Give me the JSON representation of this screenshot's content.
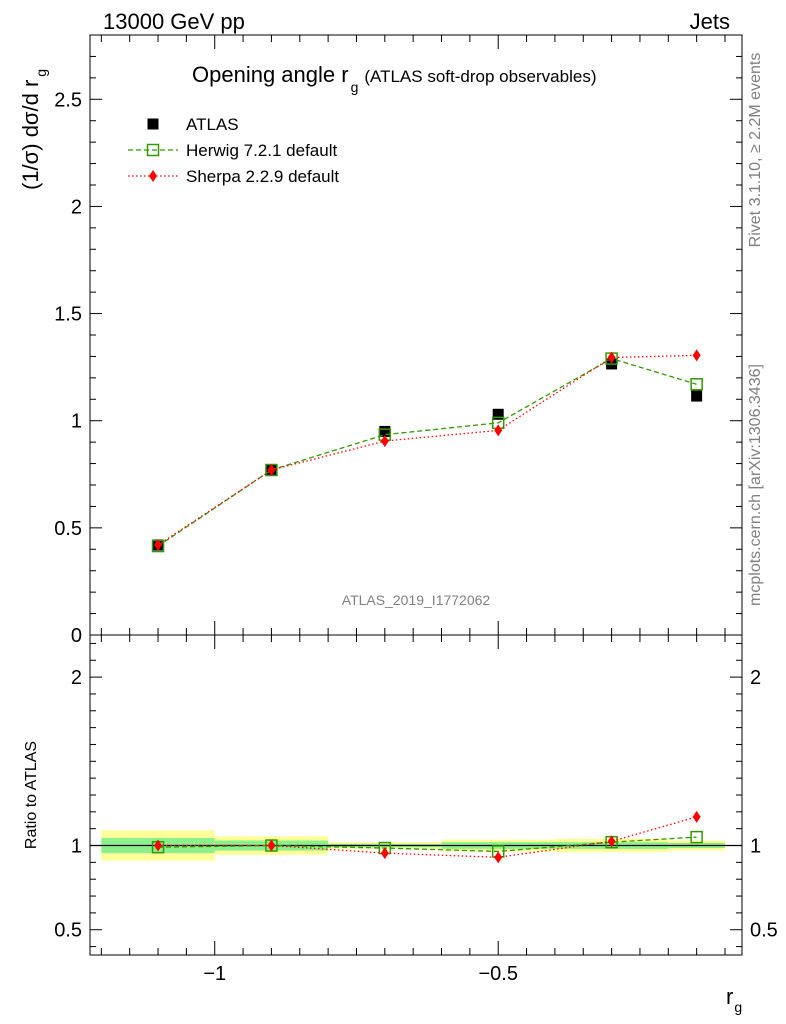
{
  "header": {
    "left": "13000 GeV pp",
    "right": "Jets"
  },
  "side_labels": {
    "rivet": "Rivet 3.1.10, ≥ 2.2M events",
    "mcplots": "mcplots.cern.ch [arXiv:1306.3436]"
  },
  "chart_data": [
    {
      "type": "scatter",
      "panel": "main",
      "title_main": "Opening angle r",
      "title_sub": "g",
      "title_paren": "(ATLAS soft-drop observables)",
      "watermark": "ATLAS_2019_I1772062",
      "ylabel_main": "(1/σ) dσ/d r",
      "ylabel_sub": "g",
      "ylim": [
        0,
        2.8
      ],
      "xlim": [
        -1.22,
        -0.07
      ],
      "y_ticks": [
        "0",
        "0.5",
        "1",
        "1.5",
        "2",
        "2.5"
      ],
      "y_tick_values": [
        0,
        0.5,
        1,
        1.5,
        2,
        2.5
      ],
      "legend_position": "top-left",
      "x": [
        -1.1,
        -0.9,
        -0.7,
        -0.5,
        -0.3,
        -0.15
      ],
      "series": [
        {
          "name": "ATLAS",
          "marker": "filled-square",
          "color": "#000000",
          "values": [
            0.42,
            0.77,
            0.95,
            1.03,
            1.265,
            1.115
          ]
        },
        {
          "name": "Herwig 7.2.1 default",
          "marker": "open-square",
          "line": "dashed",
          "color": "#339900",
          "values": [
            0.415,
            0.77,
            0.935,
            0.99,
            1.29,
            1.17
          ]
        },
        {
          "name": "Sherpa 2.2.9 default",
          "marker": "diamond",
          "line": "dotted",
          "color": "#ff0000",
          "values": [
            0.42,
            0.77,
            0.905,
            0.955,
            1.295,
            1.305
          ]
        }
      ]
    },
    {
      "type": "scatter",
      "panel": "ratio",
      "ylabel": "Ratio to ATLAS",
      "xlabel_main": "r",
      "xlabel_sub": "g",
      "ylim": [
        0.35,
        2.25
      ],
      "y_ticks": [
        "0.5",
        "1",
        "2"
      ],
      "y_tick_values": [
        0.5,
        1,
        2
      ],
      "x_ticks": [
        "−1",
        "−0.5"
      ],
      "x_tick_values": [
        -1,
        -0.5
      ],
      "bins": [
        {
          "lo": -1.2,
          "hi": -1.0,
          "green": [
            0.955,
            1.045
          ],
          "yellow": [
            0.91,
            1.09
          ]
        },
        {
          "lo": -1.0,
          "hi": -0.8,
          "green": [
            0.97,
            1.03
          ],
          "yellow": [
            0.945,
            1.055
          ]
        },
        {
          "lo": -0.8,
          "hi": -0.6,
          "green": [
            0.99,
            1.01
          ],
          "yellow": [
            0.98,
            1.02
          ]
        },
        {
          "lo": -0.6,
          "hi": -0.4,
          "green": [
            0.98,
            1.02
          ],
          "yellow": [
            0.965,
            1.035
          ]
        },
        {
          "lo": -0.4,
          "hi": -0.2,
          "green": [
            0.98,
            1.02
          ],
          "yellow": [
            0.96,
            1.04
          ]
        },
        {
          "lo": -0.2,
          "hi": -0.1,
          "green": [
            0.985,
            1.015
          ],
          "yellow": [
            0.97,
            1.03
          ]
        }
      ],
      "x": [
        -1.1,
        -0.9,
        -0.7,
        -0.5,
        -0.3,
        -0.15
      ],
      "series": [
        {
          "name": "Herwig 7.2.1 default",
          "color": "#339900",
          "values": [
            0.99,
            1.0,
            0.985,
            0.965,
            1.02,
            1.05
          ]
        },
        {
          "name": "Sherpa 2.2.9 default",
          "color": "#ff0000",
          "values": [
            1.0,
            1.0,
            0.955,
            0.93,
            1.025,
            1.17
          ]
        }
      ]
    }
  ]
}
